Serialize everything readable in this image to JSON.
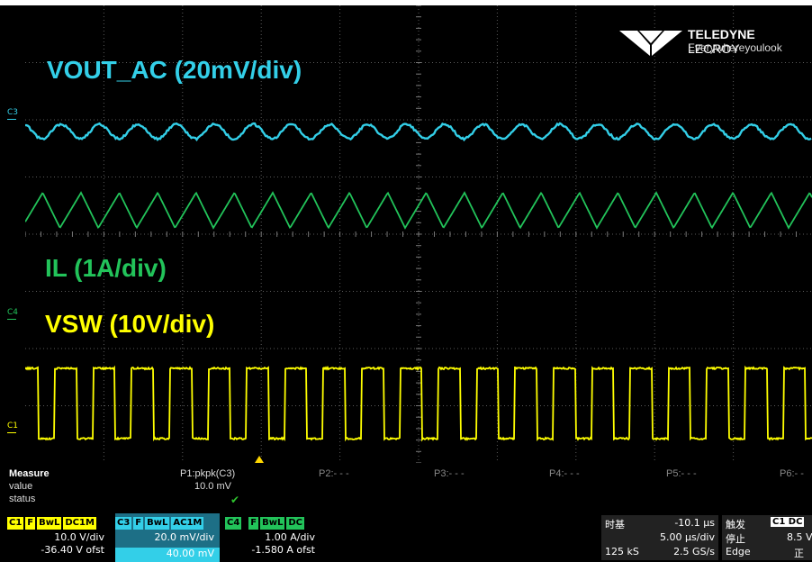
{
  "colors": {
    "c1": "#ffff00",
    "c3": "#33cfe8",
    "c4": "#22c35a",
    "grid": "#5a5a5a",
    "trigger_marker": "#ffd700",
    "check": "#2ec22e"
  },
  "logo": {
    "brand_bold": "TELEDYNE",
    "brand_thin": " LECROY",
    "tagline": "Everywhereyoulook"
  },
  "channel_markers": {
    "c3": "C3",
    "c4": "C4",
    "c1": "C1"
  },
  "traces": {
    "vout_label": "VOUT_AC (20mV/div)",
    "il_label": "IL (1A/div)",
    "vsw_label": "VSW (10V/div)"
  },
  "measure": {
    "title": "Measure",
    "row_value": "value",
    "row_status": "status",
    "p1_name": "P1:pkpk(C3)",
    "p1_value": "10.0 mV",
    "p1_status": "✔",
    "p2": "P2:- - -",
    "p3": "P3:- - -",
    "p4": "P4:- - -",
    "p5": "P5:- - -",
    "p6": "P6:- -"
  },
  "channels": [
    {
      "id": "C1",
      "tags": [
        "F",
        "BwL",
        "DC1M"
      ],
      "line1": "10.0 V/div",
      "line2": "-36.40 V ofst"
    },
    {
      "id": "C3",
      "tags": [
        "F",
        "BwL",
        "AC1M"
      ],
      "line1": "20.0 mV/div",
      "line2": "40.00 mV"
    },
    {
      "id": "C4",
      "tags": [
        "F",
        "BwL",
        "DC"
      ],
      "line1": "1.00 A/div",
      "line2": "-1.580 A ofst"
    }
  ],
  "timebase": {
    "title": "时基",
    "delay": "-10.1 µs",
    "per_div": "5.00 µs/div",
    "samples": "125 kS",
    "rate": "2.5 GS/s"
  },
  "trigger": {
    "title": "触发",
    "source": "C1 DC",
    "state": "停止",
    "level": "8.5 V",
    "type": "Edge",
    "slope": "正"
  }
}
